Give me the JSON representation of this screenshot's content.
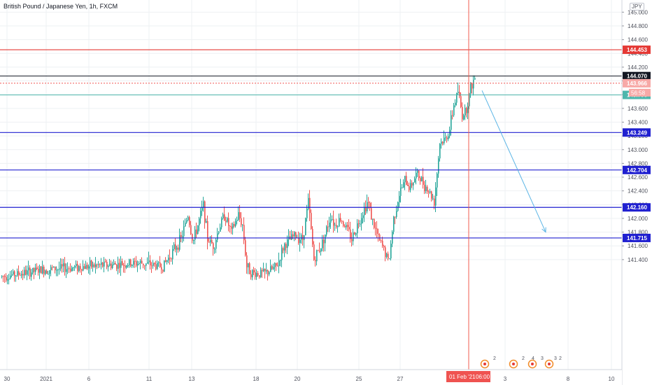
{
  "header": {
    "symbol_title": "British Pound / Japanese Yen, 1h, FXCM",
    "currency": "JPY"
  },
  "timer": "56:58",
  "crosshair_date_label": "01 Feb '21",
  "crosshair_time_label": "06:00",
  "events": [
    "2",
    "2",
    "4",
    "3",
    "3",
    "2"
  ],
  "colors": {
    "up": "#26a69a",
    "down": "#ef5350",
    "red_line": "#e53935",
    "blue_line": "#2020d0",
    "teal_line": "#4db6ac",
    "black_line": "#131722",
    "arrow": "#5ab4e5",
    "crosshair": "#f05b4f",
    "grid": "#eef0f3"
  },
  "chart_data": {
    "type": "candlestick",
    "title": "British Pound / Japanese Yen, 1h, FXCM",
    "y_axis": {
      "min": 141.2,
      "max": 145.05,
      "ticks": [
        "141.400",
        "141.600",
        "141.800",
        "142.000",
        "142.200",
        "142.400",
        "142.600",
        "142.800",
        "143.000",
        "143.200",
        "143.400",
        "143.600",
        "143.800",
        "144.000",
        "144.200",
        "144.400",
        "144.600",
        "144.800",
        "145.000"
      ]
    },
    "x_axis": {
      "labels": [
        "30",
        "2021",
        "6",
        "11",
        "13",
        "18",
        "20",
        "25",
        "27",
        "3",
        "8",
        "10"
      ]
    },
    "grid": true,
    "horizontal_levels": [
      {
        "price": 144.453,
        "label": "144.453",
        "style": "red"
      },
      {
        "price": 144.07,
        "label": "144.070",
        "style": "black"
      },
      {
        "price": 143.966,
        "label": "143.966",
        "style": "dotted-red"
      },
      {
        "price": 143.796,
        "label": "143.796",
        "style": "teal"
      },
      {
        "price": 143.249,
        "label": "143.249",
        "style": "blue"
      },
      {
        "price": 142.704,
        "label": "142.704",
        "style": "blue"
      },
      {
        "price": 142.16,
        "label": "142.160",
        "style": "blue"
      },
      {
        "price": 141.715,
        "label": "141.715",
        "style": "blue"
      }
    ],
    "price_path": [
      [
        0,
        141.15
      ],
      [
        60,
        141.25
      ],
      [
        120,
        141.3
      ],
      [
        200,
        141.35
      ],
      [
        232,
        141.3
      ],
      [
        258,
        141.7
      ],
      [
        268,
        142.05
      ],
      [
        275,
        141.65
      ],
      [
        282,
        141.9
      ],
      [
        290,
        142.2
      ],
      [
        296,
        141.7
      ],
      [
        305,
        141.6
      ],
      [
        312,
        141.85
      ],
      [
        320,
        142.05
      ],
      [
        330,
        141.8
      ],
      [
        340,
        142.05
      ],
      [
        346,
        141.9
      ],
      [
        352,
        141.3
      ],
      [
        360,
        141.2
      ],
      [
        378,
        141.2
      ],
      [
        395,
        141.3
      ],
      [
        405,
        141.6
      ],
      [
        420,
        141.75
      ],
      [
        432,
        141.7
      ],
      [
        440,
        142.25
      ],
      [
        448,
        141.4
      ],
      [
        458,
        141.6
      ],
      [
        465,
        141.8
      ],
      [
        472,
        142.05
      ],
      [
        478,
        141.9
      ],
      [
        486,
        142.0
      ],
      [
        495,
        141.85
      ],
      [
        502,
        141.7
      ],
      [
        510,
        141.9
      ],
      [
        518,
        142.1
      ],
      [
        525,
        142.25
      ],
      [
        532,
        141.95
      ],
      [
        540,
        141.7
      ],
      [
        548,
        141.55
      ],
      [
        555,
        141.35
      ],
      [
        562,
        142.0
      ],
      [
        570,
        142.35
      ],
      [
        578,
        142.55
      ],
      [
        585,
        142.45
      ],
      [
        595,
        142.65
      ],
      [
        602,
        142.55
      ],
      [
        612,
        142.4
      ],
      [
        620,
        142.25
      ],
      [
        628,
        143.1
      ],
      [
        636,
        143.15
      ],
      [
        642,
        143.3
      ],
      [
        648,
        143.65
      ],
      [
        654,
        143.85
      ],
      [
        660,
        143.5
      ],
      [
        666,
        143.6
      ],
      [
        672,
        143.9
      ],
      [
        678,
        144.05
      ]
    ],
    "price_path_note": "",
    "projection_arrow": {
      "from": [
        689,
        143.86
      ],
      "to": [
        780,
        141.8
      ]
    },
    "crosshair_x_date": "01 Feb '21 06:00"
  }
}
